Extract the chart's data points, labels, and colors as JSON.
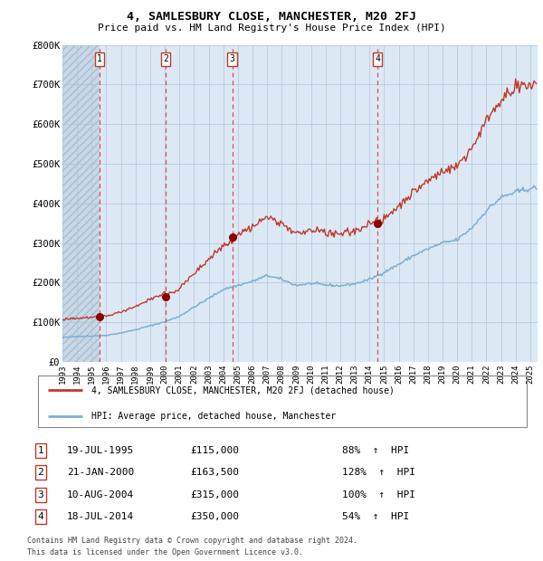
{
  "title": "4, SAMLESBURY CLOSE, MANCHESTER, M20 2FJ",
  "subtitle": "Price paid vs. HM Land Registry's House Price Index (HPI)",
  "legend_line1": "4, SAMLESBURY CLOSE, MANCHESTER, M20 2FJ (detached house)",
  "legend_line2": "HPI: Average price, detached house, Manchester",
  "footer1": "Contains HM Land Registry data © Crown copyright and database right 2024.",
  "footer2": "This data is licensed under the Open Government Licence v3.0.",
  "transactions": [
    {
      "num": 1,
      "date": "19-JUL-1995",
      "price": 115000,
      "pct": "88%",
      "dir": "↑"
    },
    {
      "num": 2,
      "date": "21-JAN-2000",
      "price": 163500,
      "pct": "128%",
      "dir": "↑"
    },
    {
      "num": 3,
      "date": "10-AUG-2004",
      "price": 315000,
      "pct": "100%",
      "dir": "↑"
    },
    {
      "num": 4,
      "date": "18-JUL-2014",
      "price": 350000,
      "pct": "54%",
      "dir": "↑"
    }
  ],
  "transaction_dates_decimal": [
    1995.54,
    2000.05,
    2004.61,
    2014.54
  ],
  "transaction_prices": [
    115000,
    163500,
    315000,
    350000
  ],
  "hpi_color": "#7bafd4",
  "price_color": "#c0392b",
  "dot_color": "#8b0000",
  "dashed_color": "#e05050",
  "box_color": "#c0392b",
  "bg_color": "#dce9f5",
  "grid_color": "#b0c4d8",
  "ylim": [
    0,
    800000
  ],
  "xlim_start": 1993.0,
  "xlim_end": 2025.5,
  "ylabel_ticks": [
    0,
    100000,
    200000,
    300000,
    400000,
    500000,
    600000,
    700000,
    800000
  ],
  "ytick_labels": [
    "£0",
    "£100K",
    "£200K",
    "£300K",
    "£400K",
    "£500K",
    "£600K",
    "£700K",
    "£800K"
  ],
  "xtick_years": [
    1993,
    1994,
    1995,
    1996,
    1997,
    1998,
    1999,
    2000,
    2001,
    2002,
    2003,
    2004,
    2005,
    2006,
    2007,
    2008,
    2009,
    2010,
    2011,
    2012,
    2013,
    2014,
    2015,
    2016,
    2017,
    2018,
    2019,
    2020,
    2021,
    2022,
    2023,
    2024,
    2025
  ],
  "hpi_anchors_x": [
    1993.0,
    1994.0,
    1995.0,
    1996.0,
    1997.0,
    1998.0,
    1999.0,
    2000.0,
    2001.0,
    2002.0,
    2003.0,
    2004.0,
    2005.0,
    2006.0,
    2007.0,
    2008.0,
    2009.0,
    2010.0,
    2011.0,
    2012.0,
    2013.0,
    2014.0,
    2015.0,
    2016.0,
    2017.0,
    2018.0,
    2019.0,
    2020.0,
    2021.0,
    2022.0,
    2023.0,
    2024.0,
    2025.0
  ],
  "hpi_anchors_y": [
    61000,
    64000,
    65000,
    67000,
    73000,
    81000,
    91000,
    101000,
    115000,
    138000,
    160000,
    183000,
    193000,
    203000,
    218000,
    208000,
    193000,
    198000,
    194000,
    192000,
    197000,
    208000,
    226000,
    246000,
    268000,
    285000,
    300000,
    308000,
    338000,
    382000,
    415000,
    428000,
    438000
  ]
}
